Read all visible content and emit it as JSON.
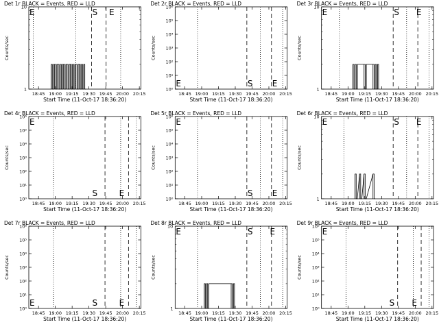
{
  "figure": {
    "rows": 3,
    "cols": 3
  },
  "chart_data": [
    {
      "type": "line",
      "title": "Det 1r BLACK = Events, RED = LLD",
      "xlabel": "Start Time (11-Oct-17 18:36:20)",
      "ylabel": "Counts/sec",
      "xtick_labels": [
        "18:45",
        "19:00",
        "19:15",
        "19:30",
        "19:45",
        "20:00",
        "20:15"
      ],
      "xtick_minutes": [
        8.67,
        23.67,
        38.67,
        53.67,
        68.67,
        83.67,
        98.67
      ],
      "xlim": [
        0,
        100
      ],
      "ylim": [
        1,
        10
      ],
      "yscale": "log",
      "ytick_labels": [
        "1",
        "10"
      ],
      "ytick_values": [
        1,
        10
      ],
      "vlines_dotted": [
        4,
        42,
        82
      ],
      "vline_dashed_s": 56,
      "vline_dashed_e": 69,
      "markers": [
        {
          "text": "E",
          "x": 0,
          "pos": "top"
        },
        {
          "text": "S",
          "x": 56,
          "pos": "top"
        },
        {
          "text": "E",
          "x": 71,
          "pos": "top"
        }
      ],
      "series": [
        {
          "color": "#000000",
          "x": [
            20,
            21,
            22,
            23,
            24,
            25,
            26,
            27,
            28,
            29,
            30,
            31,
            32,
            33,
            34,
            35,
            36,
            37,
            38,
            39,
            40,
            41,
            42,
            43,
            44,
            45,
            46,
            47,
            48,
            49,
            50
          ],
          "y": [
            2,
            1,
            2,
            2,
            1,
            2,
            2,
            1,
            2,
            1,
            2,
            2,
            1,
            2,
            2,
            1,
            2,
            2,
            1,
            2,
            1,
            2,
            2,
            1,
            2,
            2,
            1,
            2,
            1,
            2,
            1
          ]
        }
      ]
    },
    {
      "type": "line",
      "title": "Det 2r BLACK = Events, RED = LLD",
      "xlabel": "Start Time (11-Oct-17 18:36:20)",
      "ylabel": "Counts/sec",
      "xtick_labels": [
        "18:45",
        "19:00",
        "19:15",
        "19:30",
        "19:45",
        "20:00",
        "20:15"
      ],
      "xtick_minutes": [
        8.67,
        23.67,
        38.67,
        53.67,
        68.67,
        83.67,
        98.67
      ],
      "xlim": [
        0,
        100
      ],
      "ylim": [
        1,
        1000000
      ],
      "yscale": "log",
      "ytick_labels": [
        "10⁰",
        "10¹",
        "10²",
        "10³",
        "10⁴",
        "10⁵",
        "10⁶"
      ],
      "ytick_values": [
        1,
        10,
        100,
        1000,
        10000,
        100000,
        1000000
      ],
      "vlines_dotted": [
        20,
        76,
        96
      ],
      "vline_dashed_s": 64,
      "vline_dashed_e": 86,
      "markers": [
        {
          "text": "E",
          "x": 0,
          "pos": "bottom"
        },
        {
          "text": "S",
          "x": 64,
          "pos": "bottom"
        },
        {
          "text": "E",
          "x": 86,
          "pos": "bottom"
        }
      ],
      "series": []
    },
    {
      "type": "line",
      "title": "Det 3r BLACK = Events, RED = LLD",
      "xlabel": "Start Time (11-Oct-17 18:36:20)",
      "ylabel": "Counts/sec",
      "xtick_labels": [
        "18:45",
        "19:00",
        "19:15",
        "19:30",
        "19:45",
        "20:00",
        "20:15"
      ],
      "xtick_minutes": [
        8.67,
        23.67,
        38.67,
        53.67,
        68.67,
        83.67,
        98.67
      ],
      "xlim": [
        0,
        100
      ],
      "ylim": [
        1,
        10
      ],
      "yscale": "log",
      "ytick_labels": [
        "1",
        "10"
      ],
      "ytick_values": [
        1,
        10
      ],
      "vlines_dotted": [
        16,
        76,
        96
      ],
      "vline_dashed_s": 64,
      "vline_dashed_e": 86,
      "markers": [
        {
          "text": "E",
          "x": 0,
          "pos": "top"
        },
        {
          "text": "S",
          "x": 64,
          "pos": "top"
        },
        {
          "text": "E",
          "x": 84,
          "pos": "top"
        }
      ],
      "series": [
        {
          "color": "#000000",
          "x": [
            28,
            29,
            30,
            31,
            32,
            38,
            39,
            40,
            46,
            47,
            48,
            49,
            50
          ],
          "y": [
            2,
            1,
            2,
            1,
            2,
            2,
            1,
            2,
            2,
            1,
            2,
            1,
            2
          ]
        }
      ]
    },
    {
      "type": "line",
      "title": "Det 4r BLACK = Events, RED = LLD",
      "xlabel": "Start Time (11-Oct-17 18:36:20)",
      "ylabel": "Counts/sec",
      "xtick_labels": [
        "18:45",
        "19:00",
        "19:15",
        "19:30",
        "19:45",
        "20:00",
        "20:15"
      ],
      "xtick_minutes": [
        8.67,
        23.67,
        38.67,
        53.67,
        68.67,
        83.67,
        98.67
      ],
      "xlim": [
        0,
        100
      ],
      "ylim": [
        1,
        1000000
      ],
      "yscale": "log",
      "ytick_labels": [
        "10⁰",
        "10¹",
        "10²",
        "10³",
        "10⁴",
        "10⁵",
        "10⁶"
      ],
      "ytick_values": [
        1,
        10,
        100,
        1000,
        10000,
        100000,
        1000000
      ],
      "vlines_dotted": [
        22,
        82,
        96
      ],
      "vline_dashed_s": 68,
      "vline_dashed_e": 89,
      "markers": [
        {
          "text": "E",
          "x": 0,
          "pos": "top"
        },
        {
          "text": "S",
          "x": 56,
          "pos": "bottom"
        },
        {
          "text": "E",
          "x": 80,
          "pos": "bottom"
        }
      ],
      "series": []
    },
    {
      "type": "line",
      "title": "Det 5r BLACK = Events, RED = LLD",
      "xlabel": "Start Time (11-Oct-17 18:36:20)",
      "ylabel": "Counts/sec",
      "xtick_labels": [
        "18:45",
        "19:00",
        "19:15",
        "19:30",
        "19:45",
        "20:00",
        "20:15"
      ],
      "xtick_minutes": [
        8.67,
        23.67,
        38.67,
        53.67,
        68.67,
        83.67,
        98.67
      ],
      "xlim": [
        0,
        100
      ],
      "ylim": [
        1,
        1000000
      ],
      "yscale": "log",
      "ytick_labels": [
        "10⁰",
        "10¹",
        "10²",
        "10³",
        "10⁴",
        "10⁵",
        "10⁶"
      ],
      "ytick_values": [
        1,
        10,
        100,
        1000,
        10000,
        100000,
        1000000
      ],
      "vlines_dotted": [
        20,
        76,
        96
      ],
      "vline_dashed_s": 64,
      "vline_dashed_e": 86,
      "markers": [
        {
          "text": "E",
          "x": 0,
          "pos": "top"
        },
        {
          "text": "S",
          "x": 64,
          "pos": "bottom"
        },
        {
          "text": "E",
          "x": 86,
          "pos": "bottom"
        }
      ],
      "series": []
    },
    {
      "type": "line",
      "title": "Det 6r BLACK = Events, RED = LLD",
      "xlabel": "Start Time (11-Oct-17 18:36:20)",
      "ylabel": "Counts/sec",
      "xtick_labels": [
        "18:45",
        "19:00",
        "19:15",
        "19:30",
        "19:45",
        "20:00",
        "20:15"
      ],
      "xtick_minutes": [
        8.67,
        23.67,
        38.67,
        53.67,
        68.67,
        83.67,
        98.67
      ],
      "xlim": [
        0,
        100
      ],
      "ylim": [
        1,
        10
      ],
      "yscale": "log",
      "ytick_labels": [
        "1",
        "10"
      ],
      "ytick_values": [
        1,
        10
      ],
      "vlines_dotted": [
        20,
        76,
        96
      ],
      "vline_dashed_s": 64,
      "vline_dashed_e": 86,
      "markers": [
        {
          "text": "E",
          "x": 0,
          "pos": "top"
        },
        {
          "text": "S",
          "x": 64,
          "pos": "top"
        },
        {
          "text": "E",
          "x": 84,
          "pos": "top"
        }
      ],
      "series": [
        {
          "color": "#000000",
          "x": [
            30,
            31,
            34,
            35,
            38,
            39,
            46,
            47
          ],
          "y": [
            2,
            1,
            2,
            1,
            2,
            1,
            2,
            1
          ]
        }
      ]
    },
    {
      "type": "line",
      "title": "Det 7r BLACK = Events, RED = LLD",
      "xlabel": "Start Time (11-Oct-17 18:36:20)",
      "ylabel": "Counts/sec",
      "xtick_labels": [
        "18:45",
        "19:00",
        "19:15",
        "19:30",
        "19:45",
        "20:00",
        "20:15"
      ],
      "xtick_minutes": [
        8.67,
        23.67,
        38.67,
        53.67,
        68.67,
        83.67,
        98.67
      ],
      "xlim": [
        0,
        100
      ],
      "ylim": [
        1,
        1000000
      ],
      "yscale": "log",
      "ytick_labels": [
        "10⁰",
        "10¹",
        "10²",
        "10³",
        "10⁴",
        "10⁵",
        "10⁶"
      ],
      "ytick_values": [
        1,
        10,
        100,
        1000,
        10000,
        100000,
        1000000
      ],
      "vlines_dotted": [
        22,
        82,
        96
      ],
      "vline_dashed_s": 68,
      "vline_dashed_e": 89,
      "markers": [
        {
          "text": "E",
          "x": 0,
          "pos": "bottom"
        },
        {
          "text": "S",
          "x": 56,
          "pos": "bottom"
        },
        {
          "text": "E",
          "x": 80,
          "pos": "bottom"
        }
      ],
      "series": []
    },
    {
      "type": "line",
      "title": "Det 8r BLACK = Events, RED = LLD",
      "xlabel": "Start Time (11-Oct-17 18:36:20)",
      "ylabel": "Counts/sec",
      "xtick_labels": [
        "18:45",
        "19:00",
        "19:15",
        "19:30",
        "19:45",
        "20:00",
        "20:15"
      ],
      "xtick_minutes": [
        8.67,
        23.67,
        38.67,
        53.67,
        68.67,
        83.67,
        98.67
      ],
      "xlim": [
        0,
        100
      ],
      "ylim": [
        1,
        10
      ],
      "yscale": "log",
      "ytick_labels": [
        "1",
        "10"
      ],
      "ytick_values": [
        1,
        10
      ],
      "vlines_dotted": [
        20,
        76,
        96
      ],
      "vline_dashed_s": 64,
      "vline_dashed_e": 86,
      "markers": [
        {
          "text": "E",
          "x": 0,
          "pos": "top"
        },
        {
          "text": "S",
          "x": 64,
          "pos": "top"
        },
        {
          "text": "E",
          "x": 84,
          "pos": "top"
        }
      ],
      "series": [
        {
          "color": "#000000",
          "x": [
            26,
            27,
            28,
            29,
            30,
            50,
            51,
            52,
            53
          ],
          "y": [
            2,
            1,
            2,
            1,
            2,
            2,
            1,
            2,
            1
          ]
        }
      ]
    },
    {
      "type": "line",
      "title": "Det 9r BLACK = Events, RED = LLD",
      "xlabel": "Start Time (11-Oct-17 18:36:20)",
      "ylabel": "Counts/sec",
      "xtick_labels": [
        "18:45",
        "19:00",
        "19:15",
        "19:30",
        "19:45",
        "20:00",
        "20:15"
      ],
      "xtick_minutes": [
        8.67,
        23.67,
        38.67,
        53.67,
        68.67,
        83.67,
        98.67
      ],
      "xlim": [
        0,
        100
      ],
      "ylim": [
        1,
        1000000
      ],
      "yscale": "log",
      "ytick_labels": [
        "10⁰",
        "10¹",
        "10²",
        "10³",
        "10⁴",
        "10⁵",
        "10⁶"
      ],
      "ytick_values": [
        1,
        10,
        100,
        1000,
        10000,
        100000,
        1000000
      ],
      "vlines_dotted": [
        22,
        82,
        96
      ],
      "vline_dashed_s": 68,
      "vline_dashed_e": 89,
      "markers": [
        {
          "text": "E",
          "x": 0,
          "pos": "top"
        },
        {
          "text": "S",
          "x": 60,
          "pos": "bottom"
        },
        {
          "text": "E",
          "x": 80,
          "pos": "bottom"
        }
      ],
      "series": []
    }
  ]
}
